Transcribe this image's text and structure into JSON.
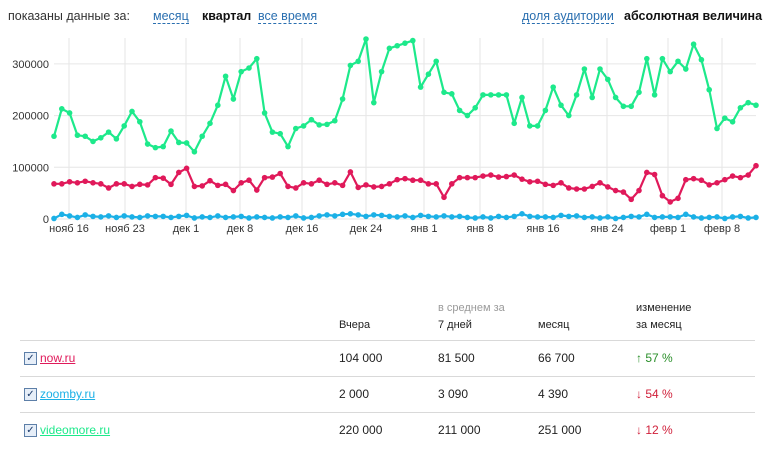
{
  "topbar": {
    "period_label": "показаны данные за:",
    "period_month": "месяц",
    "period_quarter": "квартал",
    "period_all": "все время",
    "mode_share": "доля аудитории",
    "mode_absolute": "абсолютная величина"
  },
  "colors": {
    "now": "#e0195a",
    "zoomby": "#1bb0e6",
    "videomore": "#1de98b"
  },
  "chart_data": {
    "type": "line",
    "x_tick_labels": [
      "нояб 16",
      "нояб 23",
      "дек 1",
      "дек 8",
      "дек 16",
      "дек 24",
      "янв 1",
      "янв 8",
      "янв 16",
      "янв 24",
      "февр 1",
      "февр 8"
    ],
    "y_tick_labels": [
      "0",
      "100000",
      "200000",
      "300000"
    ],
    "ylim": [
      0,
      350000
    ],
    "grid": true,
    "series": [
      {
        "name": "videomore.ru",
        "color": "#1de98b",
        "values": [
          160000,
          213000,
          205000,
          162000,
          160000,
          150000,
          157000,
          168000,
          155000,
          180000,
          208000,
          188000,
          145000,
          138000,
          140000,
          170000,
          148000,
          147000,
          130000,
          160000,
          185000,
          220000,
          276000,
          232000,
          285000,
          292000,
          310000,
          205000,
          168000,
          165000,
          140000,
          175000,
          180000,
          192000,
          182000,
          183000,
          190000,
          232000,
          297000,
          305000,
          348000,
          225000,
          285000,
          330000,
          335000,
          340000,
          345000,
          255000,
          280000,
          305000,
          245000,
          242000,
          210000,
          200000,
          215000,
          240000,
          240000,
          240000,
          240000,
          185000,
          235000,
          180000,
          180000,
          210000,
          255000,
          220000,
          200000,
          240000,
          290000,
          235000,
          290000,
          270000,
          235000,
          218000,
          218000,
          245000,
          310000,
          240000,
          310000,
          285000,
          305000,
          290000,
          338000,
          308000,
          250000,
          175000,
          195000,
          188000,
          215000,
          225000,
          220000
        ]
      },
      {
        "name": "now.ru",
        "color": "#e0195a",
        "values": [
          68000,
          68000,
          72000,
          70000,
          73000,
          70000,
          68000,
          60000,
          68000,
          68000,
          63000,
          67000,
          66000,
          80000,
          79000,
          67000,
          90000,
          98000,
          63000,
          64000,
          74000,
          65000,
          67000,
          55000,
          70000,
          75000,
          56000,
          80000,
          81000,
          88000,
          63000,
          60000,
          70000,
          68000,
          75000,
          67000,
          70000,
          65000,
          91000,
          61000,
          66000,
          62000,
          63000,
          68000,
          76000,
          78000,
          75000,
          75000,
          68000,
          68000,
          42000,
          68000,
          80000,
          80000,
          80000,
          83000,
          85000,
          81000,
          82000,
          85000,
          77000,
          72000,
          73000,
          67000,
          65000,
          70000,
          60000,
          58000,
          58000,
          63000,
          70000,
          62000,
          55000,
          52000,
          38000,
          55000,
          90000,
          86000,
          45000,
          33000,
          40000,
          76000,
          78000,
          75000,
          66000,
          70000,
          76000,
          83000,
          80000,
          85000,
          103000
        ]
      },
      {
        "name": "zoomby.ru",
        "color": "#1bb0e6",
        "values": [
          1000,
          9000,
          6000,
          3000,
          8000,
          5000,
          4000,
          6000,
          3000,
          6000,
          4000,
          3000,
          6000,
          5000,
          5000,
          3000,
          5000,
          7000,
          2000,
          4000,
          3000,
          6000,
          3000,
          4000,
          5000,
          2000,
          4000,
          3000,
          2000,
          4000,
          3000,
          6000,
          2000,
          3000,
          6000,
          8000,
          6000,
          9000,
          10000,
          8000,
          5000,
          8000,
          7000,
          5000,
          4000,
          6000,
          3000,
          7000,
          5000,
          4000,
          6000,
          4000,
          5000,
          3000,
          2000,
          4000,
          2000,
          5000,
          3000,
          5000,
          10000,
          5000,
          4000,
          4000,
          3000,
          7000,
          5000,
          6000,
          3000,
          4000,
          2000,
          4000,
          1000,
          3000,
          5000,
          4000,
          9000,
          3000,
          4000,
          4000,
          3000,
          9000,
          4000,
          2000,
          3000,
          4000,
          1000,
          4000,
          5000,
          2000,
          3000
        ]
      }
    ]
  },
  "table": {
    "head_group": "в среднем за",
    "head_yesterday": "Вчера",
    "head_7days": "7 дней",
    "head_month": "месяц",
    "head_change1": "изменение",
    "head_change2": "за месяц",
    "rows": [
      {
        "name": "now.ru",
        "yesterday": "104 000",
        "week": "81 500",
        "month": "66 700",
        "change": "57 %",
        "arrow": "↑",
        "dir": "up"
      },
      {
        "name": "zoomby.ru",
        "yesterday": "2 000",
        "week": "3 090",
        "month": "4 390",
        "change": "54 %",
        "arrow": "↓",
        "dir": "down"
      },
      {
        "name": "videomore.ru",
        "yesterday": "220 000",
        "week": "211 000",
        "month": "251 000",
        "change": "12 %",
        "arrow": "↓",
        "dir": "down"
      }
    ]
  }
}
